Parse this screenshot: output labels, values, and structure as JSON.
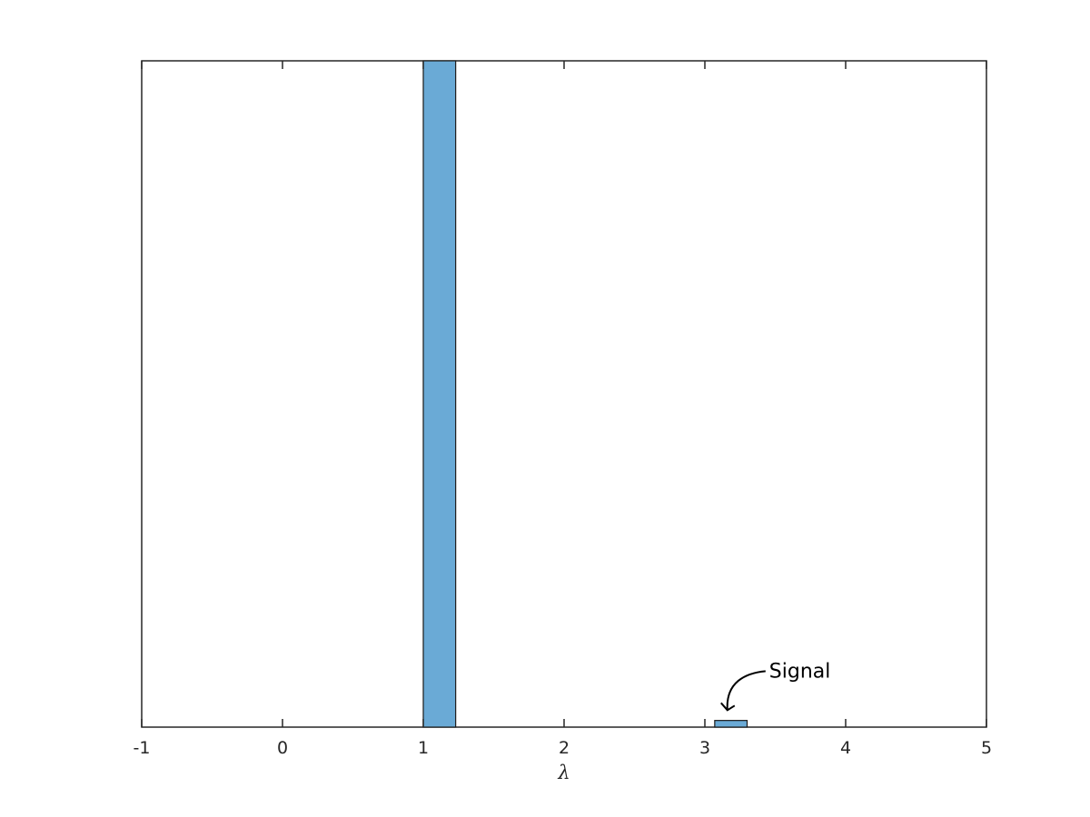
{
  "chart_data": {
    "type": "bar",
    "title": "",
    "xlabel": "λ",
    "ylabel": "",
    "xlim": [
      -1,
      5
    ],
    "ylim": [
      0,
      1
    ],
    "grid": false,
    "x_ticks": [
      "-1",
      "0",
      "1",
      "2",
      "3",
      "4",
      "5"
    ],
    "bars": [
      {
        "x_start": 1.0,
        "x_end": 1.23,
        "value": 1.0
      },
      {
        "x_start": 3.07,
        "x_end": 3.3,
        "value": 0.01
      }
    ],
    "annotations": [
      {
        "text": "Signal",
        "points_to_x": 3.16,
        "points_to_y": 0.02
      }
    ],
    "colors": {
      "bar_fill": "#6aaad6",
      "bar_edge": "#1a1a1a",
      "axes": "#262626"
    }
  }
}
